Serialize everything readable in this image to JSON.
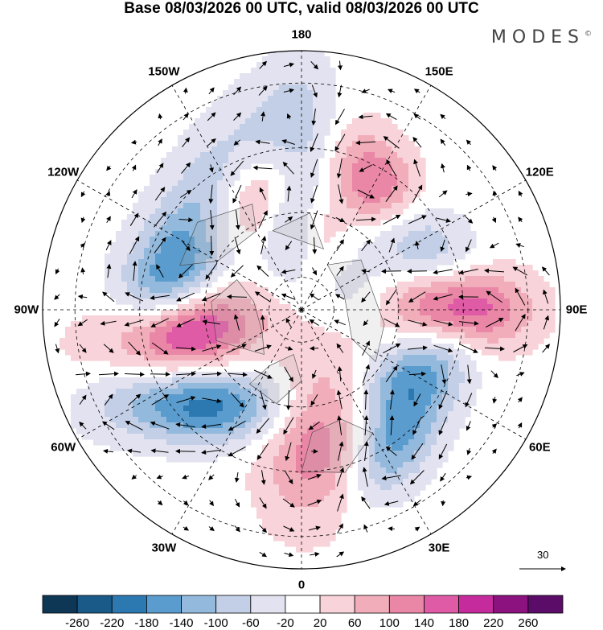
{
  "title": "Base 08/03/2026 00 UTC, valid 08/03/2026 00 UTC",
  "brand": {
    "name": "MODES",
    "mark": "©"
  },
  "longitude_labels": [
    {
      "text": "180",
      "lon": 180
    },
    {
      "text": "150E",
      "lon": 150
    },
    {
      "text": "120E",
      "lon": 120
    },
    {
      "text": "90E",
      "lon": 90
    },
    {
      "text": "60E",
      "lon": 60
    },
    {
      "text": "30E",
      "lon": 30
    },
    {
      "text": "0",
      "lon": 0
    },
    {
      "text": "30W",
      "lon": -30
    },
    {
      "text": "60W",
      "lon": -60
    },
    {
      "text": "90W",
      "lon": -90
    },
    {
      "text": "120W",
      "lon": -120
    },
    {
      "text": "150W",
      "lon": -150
    }
  ],
  "reference_vector": {
    "value": "30"
  },
  "colorbar": {
    "labels": [
      "-260",
      "-220",
      "-180",
      "-140",
      "-100",
      "-60",
      "-20",
      "20",
      "60",
      "100",
      "140",
      "180",
      "220",
      "260"
    ],
    "colors": [
      "#0e3756",
      "#1a5a88",
      "#2c79b2",
      "#5a9ccd",
      "#93b9dc",
      "#c3cfe6",
      "#e2e2f0",
      "#ffffff",
      "#f8d3d9",
      "#f1aeba",
      "#ea87a6",
      "#e05ba5",
      "#c52b9c",
      "#8b127f",
      "#5a0c68"
    ]
  },
  "field": {
    "anomalies": [
      {
        "lon": -120,
        "colat": 40,
        "amp": -260,
        "sa": 10,
        "sb": 26,
        "rot": -30
      },
      {
        "lon": -80,
        "colat": 40,
        "amp": 250,
        "sa": 9,
        "sb": 17,
        "rot": -20
      },
      {
        "lon": -45,
        "colat": 42,
        "amp": -200,
        "sa": 8,
        "sb": 18,
        "rot": -45
      },
      {
        "lon": -150,
        "colat": 38,
        "amp": 190,
        "sa": 10,
        "sb": 18,
        "rot": 20
      },
      {
        "lon": 180,
        "colat": 45,
        "amp": -130,
        "sa": 9,
        "sb": 18,
        "rot": 0
      },
      {
        "lon": 150,
        "colat": 44,
        "amp": 160,
        "sa": 9,
        "sb": 12,
        "rot": 0
      },
      {
        "lon": 120,
        "colat": 40,
        "amp": -120,
        "sa": 9,
        "sb": 14,
        "rot": 0
      },
      {
        "lon": 95,
        "colat": 35,
        "amp": 110,
        "sa": 8,
        "sb": 12,
        "rot": 0
      },
      {
        "lon": 90,
        "colat": 55,
        "amp": 150,
        "sa": 9,
        "sb": 12,
        "rot": 0
      },
      {
        "lon": 60,
        "colat": 40,
        "amp": -140,
        "sa": 8,
        "sb": 14,
        "rot": 0
      },
      {
        "lon": 35,
        "colat": 50,
        "amp": -160,
        "sa": 8,
        "sb": 14,
        "rot": 0
      },
      {
        "lon": 8,
        "colat": 40,
        "amp": 140,
        "sa": 12,
        "sb": 18,
        "rot": 0
      },
      {
        "lon": 170,
        "colat": 25,
        "amp": 80,
        "sa": 7,
        "sb": 10,
        "rot": 0
      },
      {
        "lon": -170,
        "colat": 25,
        "amp": -70,
        "sa": 6,
        "sb": 10,
        "rot": 0
      },
      {
        "lon": 105,
        "colat": 20,
        "amp": -60,
        "sa": 8,
        "sb": 12,
        "rot": 0
      }
    ]
  }
}
